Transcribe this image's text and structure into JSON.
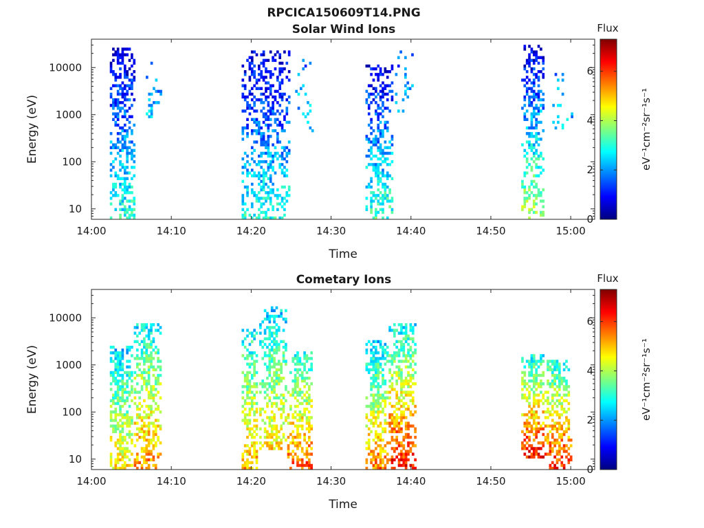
{
  "figure": {
    "title": "RPCICA150609T14.PNG",
    "background": "#ffffff"
  },
  "colormap": {
    "name": "jet",
    "stops": [
      "#00007f",
      "#0000ff",
      "#007fff",
      "#00ffff",
      "#7fff7f",
      "#ffff00",
      "#ff7f00",
      "#ff0000",
      "#7f0000"
    ]
  },
  "chart_data": [
    {
      "type": "heatmap",
      "title": "Solar Wind Ions",
      "xlabel": "Time",
      "ylabel": "Energy (eV)",
      "x_unit": "minutes after 14:00",
      "x_range_minutes": [
        0,
        63
      ],
      "x_ticks": [
        "14:00",
        "14:10",
        "14:20",
        "14:30",
        "14:40",
        "14:50",
        "15:00"
      ],
      "y_scale": "log",
      "y_range": [
        6,
        40000
      ],
      "y_ticks": [
        "10",
        "100",
        "1000",
        "10000"
      ],
      "colorbar": {
        "title": "Flux",
        "unit": "eV⁻¹cm⁻²sr⁻¹s⁻¹",
        "range": [
          0,
          7.3
        ],
        "ticks": [
          "0",
          "2",
          "4",
          "6"
        ]
      },
      "bursts": [
        {
          "start_min": 2.3,
          "end_min": 5.3,
          "emin": 6,
          "emax": 26000,
          "low_flux": 3.0,
          "high_flux": 0.6,
          "density": 0.55
        },
        {
          "start_min": 6.8,
          "end_min": 8.8,
          "emin": 700,
          "emax": 18000,
          "low_flux": 2.6,
          "high_flux": 1.4,
          "density": 0.25
        },
        {
          "start_min": 18.8,
          "end_min": 24.8,
          "emin": 6,
          "emax": 22000,
          "low_flux": 3.0,
          "high_flux": 0.6,
          "density": 0.45
        },
        {
          "start_min": 25.5,
          "end_min": 27.8,
          "emin": 400,
          "emax": 18000,
          "low_flux": 2.6,
          "high_flux": 1.6,
          "density": 0.15
        },
        {
          "start_min": 34.3,
          "end_min": 37.5,
          "emin": 6,
          "emax": 11000,
          "low_flux": 3.2,
          "high_flux": 0.7,
          "density": 0.5
        },
        {
          "start_min": 38.0,
          "end_min": 40.3,
          "emin": 1000,
          "emax": 22000,
          "low_flux": 2.4,
          "high_flux": 1.4,
          "density": 0.15
        },
        {
          "start_min": 53.8,
          "end_min": 56.6,
          "emin": 6,
          "emax": 30000,
          "low_flux": 4.0,
          "high_flux": 0.6,
          "density": 0.5
        },
        {
          "start_min": 57.4,
          "end_min": 60.2,
          "emin": 500,
          "emax": 10000,
          "low_flux": 2.4,
          "high_flux": 1.8,
          "density": 0.15
        }
      ]
    },
    {
      "type": "heatmap",
      "title": "Cometary Ions",
      "xlabel": "Time",
      "ylabel": "Energy (eV)",
      "x_unit": "minutes after 14:00",
      "x_range_minutes": [
        0,
        63
      ],
      "x_ticks": [
        "14:00",
        "14:10",
        "14:20",
        "14:30",
        "14:40",
        "14:50",
        "15:00"
      ],
      "y_scale": "log",
      "y_range": [
        6,
        40000
      ],
      "y_ticks": [
        "10",
        "100",
        "1000",
        "10000"
      ],
      "colorbar": {
        "title": "Flux",
        "unit": "eV⁻¹cm⁻²sr⁻¹s⁻¹",
        "range": [
          0,
          7.3
        ],
        "ticks": [
          "0",
          "2",
          "4",
          "6"
        ]
      },
      "bursts": [
        {
          "start_min": 2.3,
          "end_min": 5.1,
          "emin": 6,
          "emax": 2500,
          "low_flux": 4.8,
          "high_flux": 2.4,
          "density": 0.7
        },
        {
          "start_min": 5.3,
          "end_min": 8.5,
          "emin": 6,
          "emax": 8000,
          "low_flux": 5.5,
          "high_flux": 2.6,
          "density": 0.65
        },
        {
          "start_min": 18.8,
          "end_min": 20.8,
          "emin": 6,
          "emax": 6000,
          "low_flux": 5.2,
          "high_flux": 2.6,
          "density": 0.6
        },
        {
          "start_min": 21.0,
          "end_min": 24.3,
          "emin": 15,
          "emax": 17000,
          "low_flux": 4.8,
          "high_flux": 2.4,
          "density": 0.6
        },
        {
          "start_min": 24.5,
          "end_min": 27.6,
          "emin": 6,
          "emax": 2000,
          "low_flux": 5.8,
          "high_flux": 2.8,
          "density": 0.6
        },
        {
          "start_min": 34.3,
          "end_min": 37.0,
          "emin": 6,
          "emax": 3500,
          "low_flux": 5.6,
          "high_flux": 2.4,
          "density": 0.7
        },
        {
          "start_min": 37.2,
          "end_min": 40.5,
          "emin": 6,
          "emax": 7500,
          "low_flux": 6.4,
          "high_flux": 2.6,
          "density": 0.65
        },
        {
          "start_min": 53.8,
          "end_min": 56.5,
          "emin": 10,
          "emax": 1600,
          "low_flux": 6.4,
          "high_flux": 2.8,
          "density": 0.7
        },
        {
          "start_min": 56.7,
          "end_min": 59.9,
          "emin": 6,
          "emax": 1300,
          "low_flux": 6.2,
          "high_flux": 2.8,
          "density": 0.6
        }
      ]
    }
  ]
}
